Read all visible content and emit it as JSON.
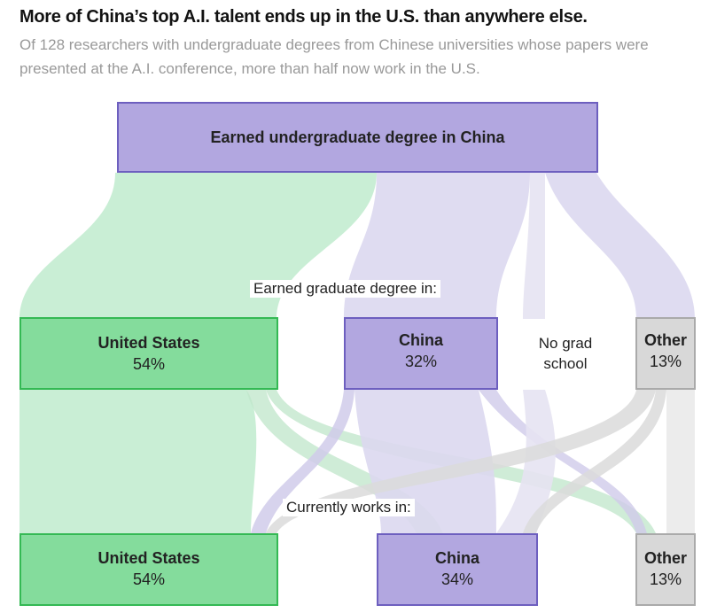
{
  "header": {
    "title": "More of China’s top A.I. talent ends up in the U.S. than anywhere else.",
    "subtitle": "Of 128 researchers with undergraduate degrees from Chinese universities whose papers were presented at the A.I. conference, more than half now work in the U.S."
  },
  "nodes": {
    "source": {
      "label": "Earned undergraduate degree in China"
    },
    "grad_caption": "Earned graduate degree in:",
    "grad": {
      "us": {
        "label": "United States",
        "pct": "54%"
      },
      "china": {
        "label": "China",
        "pct": "32%"
      },
      "none": {
        "label": "No grad school"
      },
      "other": {
        "label": "Other",
        "pct": "13%"
      }
    },
    "work_caption": "Currently works in:",
    "work": {
      "us": {
        "label": "United States",
        "pct": "54%"
      },
      "china": {
        "label": "China",
        "pct": "34%"
      },
      "other": {
        "label": "Other",
        "pct": "13%"
      }
    }
  },
  "colors": {
    "us": "#84dc9c",
    "china": "#b2a7e0",
    "other": "#d8d8d8",
    "flow_us": "#c3ecd0",
    "flow_china": "#dcd8f0",
    "flow_other": "#ebebeb"
  }
}
